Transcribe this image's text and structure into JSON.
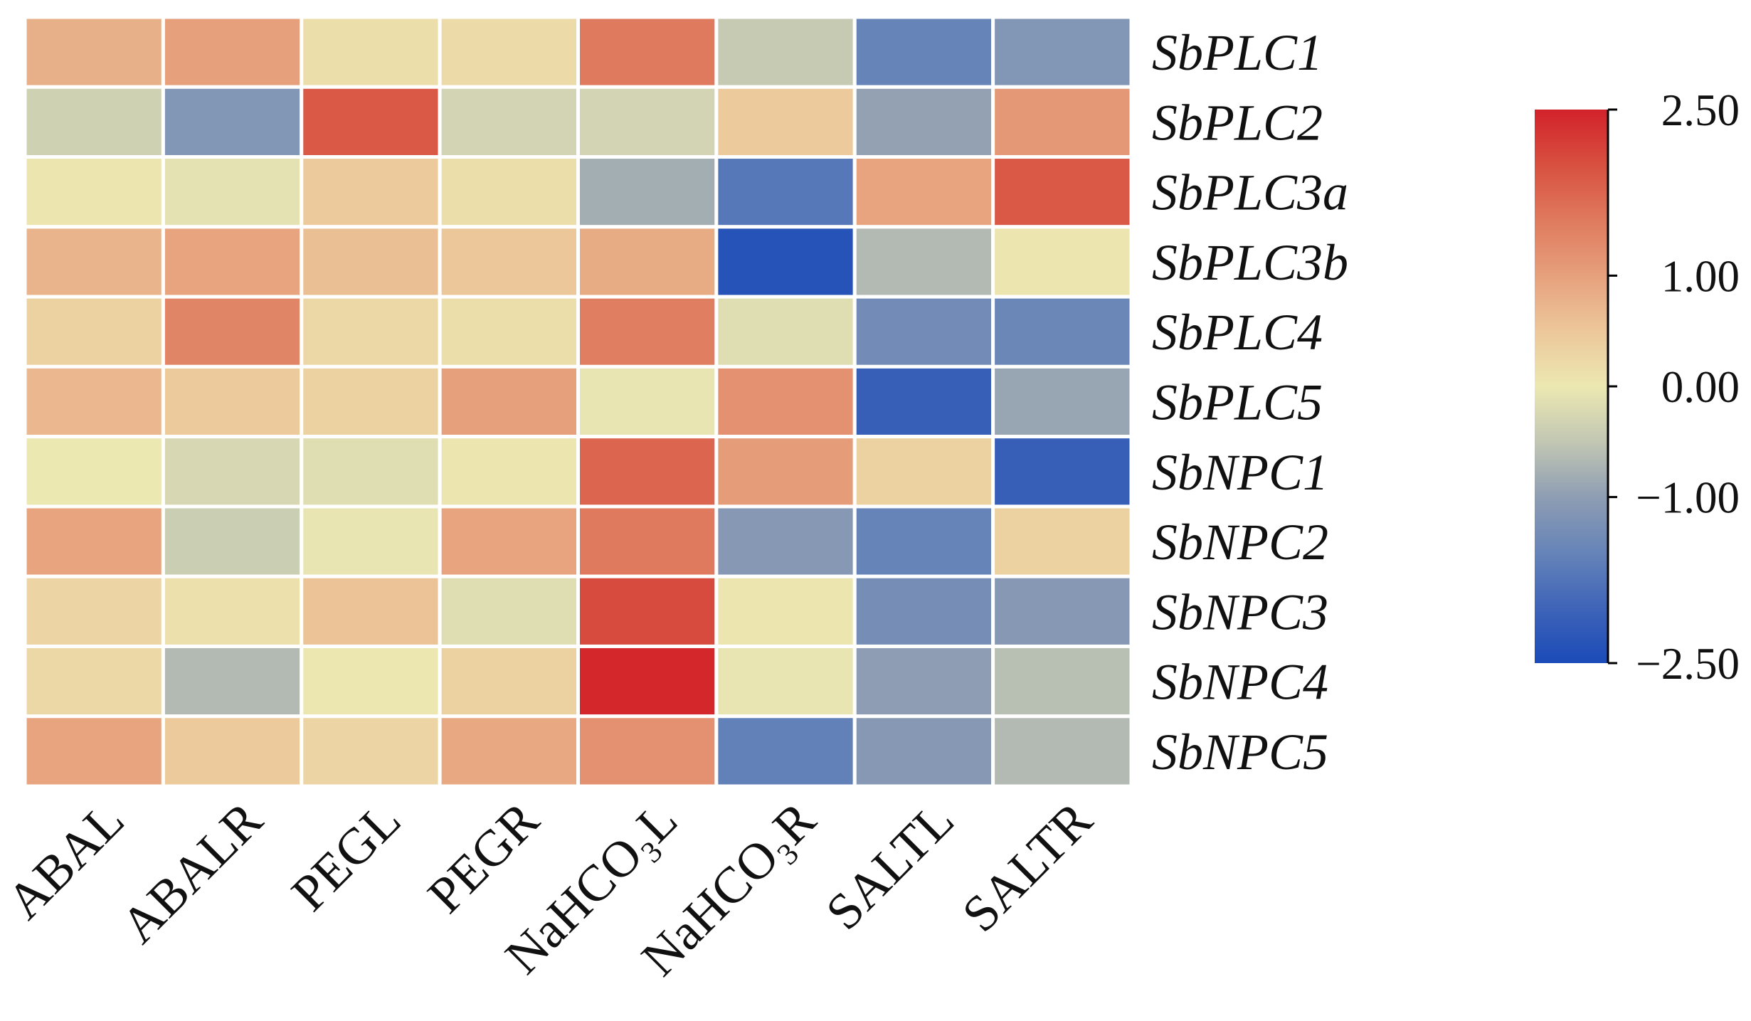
{
  "chart_data": {
    "type": "heatmap",
    "columns": [
      "ABAL",
      "ABALR",
      "PEGL",
      "PEGR",
      "NaHCO₃L",
      "NaHCO₃R",
      "SALTL",
      "SALTR"
    ],
    "rows": [
      "SbPLC1",
      "SbPLC2",
      "SbPLC3a",
      "SbPLC3b",
      "SbPLC4",
      "SbPLC5",
      "SbNPC1",
      "SbNPC2",
      "SbNPC3",
      "SbNPC4",
      "SbNPC5"
    ],
    "values": [
      [
        0.8,
        1.0,
        0.15,
        0.2,
        1.5,
        -0.45,
        -1.5,
        -1.15
      ],
      [
        -0.35,
        -1.15,
        1.9,
        -0.3,
        -0.3,
        0.45,
        -0.95,
        1.1
      ],
      [
        0.05,
        -0.1,
        0.45,
        0.15,
        -0.8,
        -1.7,
        0.95,
        1.9
      ],
      [
        0.75,
        0.95,
        0.6,
        0.5,
        0.85,
        -2.35,
        -0.65,
        0.05
      ],
      [
        0.35,
        1.35,
        0.25,
        0.15,
        1.45,
        -0.15,
        -1.35,
        -1.45
      ],
      [
        0.7,
        0.45,
        0.35,
        1.0,
        -0.05,
        1.2,
        -2.1,
        -0.9
      ],
      [
        0.0,
        -0.25,
        -0.15,
        0.05,
        1.75,
        1.05,
        0.35,
        -2.1
      ],
      [
        0.95,
        -0.4,
        -0.05,
        0.95,
        1.5,
        -1.1,
        -1.5,
        0.35
      ],
      [
        0.3,
        0.12,
        0.55,
        -0.15,
        2.05,
        0.05,
        -1.3,
        -1.1
      ],
      [
        0.25,
        -0.65,
        0.02,
        0.35,
        2.45,
        -0.05,
        -1.0,
        -0.6
      ],
      [
        0.95,
        0.45,
        0.3,
        0.9,
        1.2,
        -1.55,
        -1.1,
        -0.65
      ]
    ],
    "colorbar": {
      "range": [
        -2.5,
        2.5
      ],
      "ticks": [
        2.5,
        1.0,
        0.0,
        -1.0,
        -2.5
      ],
      "tick_labels": [
        "2.50",
        "1.00",
        "0.00",
        "−1.00",
        "−2.50"
      ]
    },
    "colormap": [
      {
        "value": -2.5,
        "color": "#1b4bb8"
      },
      {
        "value": -2.0,
        "color": "#3f64b8"
      },
      {
        "value": -1.5,
        "color": "#6684b8"
      },
      {
        "value": -1.0,
        "color": "#8e9db3"
      },
      {
        "value": -0.5,
        "color": "#c2c7b3"
      },
      {
        "value": 0.0,
        "color": "#ece8b2"
      },
      {
        "value": 0.5,
        "color": "#ecc79a"
      },
      {
        "value": 1.0,
        "color": "#e6a07c"
      },
      {
        "value": 1.5,
        "color": "#df7a5e"
      },
      {
        "value": 2.0,
        "color": "#d85040"
      },
      {
        "value": 2.5,
        "color": "#d2222a"
      }
    ]
  }
}
